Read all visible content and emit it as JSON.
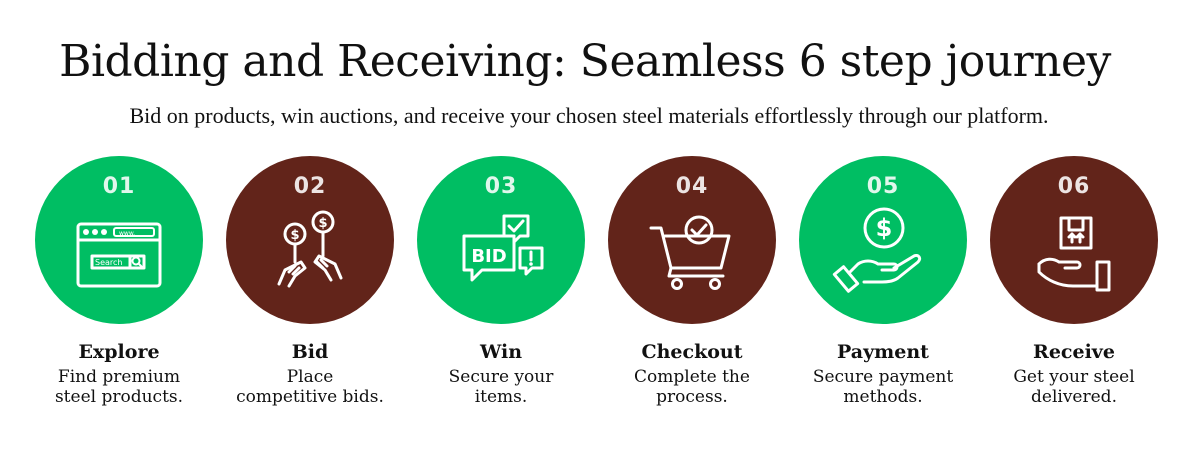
{
  "title": "Bidding and Receiving: Seamless 6 step journey",
  "subtitle": "Bid on products, win auctions, and receive your chosen steel materials effortlessly through our platform.",
  "colors": {
    "green": "#00BE63",
    "brown": "#62241A",
    "icon": "#ffffff"
  },
  "steps": [
    {
      "number": "01",
      "name": "Explore",
      "desc_line1": "Find premium",
      "desc_line2": "steel products.",
      "color": "#00BE63",
      "icon": "browser-search-icon",
      "icon_text": {
        "url": "www.",
        "search": "Search"
      }
    },
    {
      "number": "02",
      "name": "Bid",
      "desc_line1": "Place",
      "desc_line2": "competitive bids.",
      "color": "#62241A",
      "icon": "bid-paddles-icon"
    },
    {
      "number": "03",
      "name": "Win",
      "desc_line1": "Secure your",
      "desc_line2": "items.",
      "color": "#00BE63",
      "icon": "bid-chat-icon",
      "icon_text": {
        "bid": "BID"
      }
    },
    {
      "number": "04",
      "name": "Checkout",
      "desc_line1": "Complete the",
      "desc_line2": "process.",
      "color": "#62241A",
      "icon": "cart-check-icon"
    },
    {
      "number": "05",
      "name": "Payment",
      "desc_line1": "Secure payment",
      "desc_line2": "methods.",
      "color": "#00BE63",
      "icon": "hand-dollar-icon"
    },
    {
      "number": "06",
      "name": "Receive",
      "desc_line1": "Get your steel",
      "desc_line2": "delivered.",
      "color": "#62241A",
      "icon": "hand-box-icon"
    }
  ]
}
